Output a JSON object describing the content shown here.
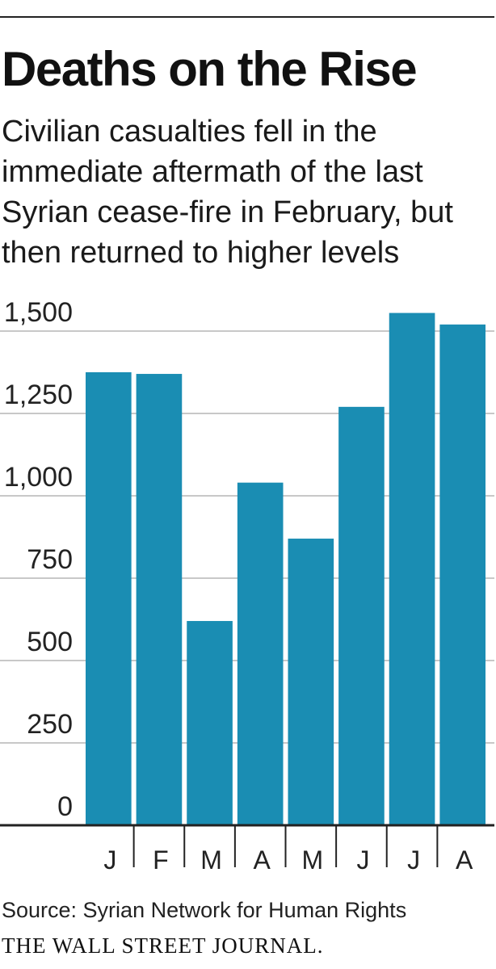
{
  "header": {
    "title": "Deaths on the Rise",
    "subtitle": "Civilian casualties fell in the immediate aftermath of the last Syrian cease-fire in February, but then returned to higher levels"
  },
  "footer": {
    "source": "Source: Syrian Network for Human Rights",
    "brand": "THE WALL STREET JOURNAL."
  },
  "chart_data": {
    "type": "bar",
    "categories": [
      "J",
      "F",
      "M",
      "A",
      "M",
      "J",
      "J",
      "A"
    ],
    "values": [
      1375,
      1370,
      620,
      1040,
      870,
      1270,
      1555,
      1520
    ],
    "ylim": [
      0,
      1500
    ],
    "yticks": [
      0,
      250,
      500,
      750,
      1000,
      1250,
      1500
    ],
    "ytick_labels": [
      "0",
      "250",
      "500",
      "750",
      "1,000",
      "1,250",
      "1,500"
    ],
    "grid": true,
    "bar_color": "#1a8db3",
    "grid_color": "#c8c8c8",
    "axis_color": "#222222"
  }
}
